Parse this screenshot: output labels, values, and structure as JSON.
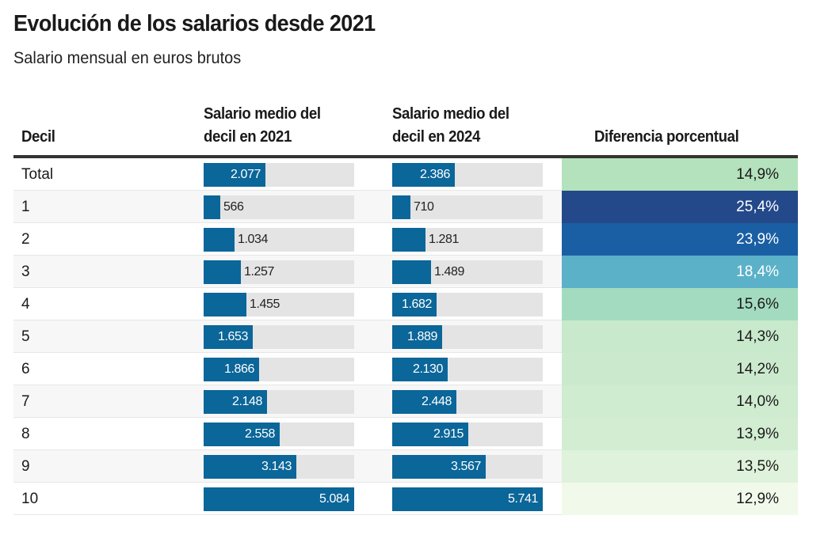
{
  "title": "Evolución de los salarios desde 2021",
  "subtitle": "Salario mensual en euros brutos",
  "headers": {
    "decil": "Decil",
    "y2021": "Salario medio del decil en 2021",
    "y2024": "Salario medio del decil en 2024",
    "diff": "Diferencia porcentual"
  },
  "colors": {
    "bar": "#0b6699",
    "track": "#e4e4e4"
  },
  "rows": [
    {
      "decil": "Total",
      "v2021": 2077,
      "l2021": "2.077",
      "v2024": 2386,
      "l2024": "2.386",
      "diff": "14,9%",
      "diff_value": 14.9,
      "diff_color": "#b4e2bc",
      "diff_text": "#1a1a1a"
    },
    {
      "decil": "1",
      "v2021": 566,
      "l2021": "566",
      "v2024": 710,
      "l2024": "710",
      "diff": "25,4%",
      "diff_value": 25.4,
      "diff_color": "#24498a",
      "diff_text": "#ffffff"
    },
    {
      "decil": "2",
      "v2021": 1034,
      "l2021": "1.034",
      "v2024": 1281,
      "l2024": "1.281",
      "diff": "23,9%",
      "diff_value": 23.9,
      "diff_color": "#1a5fa3",
      "diff_text": "#ffffff"
    },
    {
      "decil": "3",
      "v2021": 1257,
      "l2021": "1.257",
      "v2024": 1489,
      "l2024": "1.489",
      "diff": "18,4%",
      "diff_value": 18.4,
      "diff_color": "#5bb1c8",
      "diff_text": "#ffffff"
    },
    {
      "decil": "4",
      "v2021": 1455,
      "l2021": "1.455",
      "v2024": 1682,
      "l2024": "1.682",
      "diff": "15,6%",
      "diff_value": 15.6,
      "diff_color": "#a3dbc0",
      "diff_text": "#1a1a1a"
    },
    {
      "decil": "5",
      "v2021": 1653,
      "l2021": "1.653",
      "v2024": 1889,
      "l2024": "1.889",
      "diff": "14,3%",
      "diff_value": 14.3,
      "diff_color": "#c8e9cb",
      "diff_text": "#1a1a1a"
    },
    {
      "decil": "6",
      "v2021": 1866,
      "l2021": "1.866",
      "v2024": 2130,
      "l2024": "2.130",
      "diff": "14,2%",
      "diff_value": 14.2,
      "diff_color": "#cbeacd",
      "diff_text": "#1a1a1a"
    },
    {
      "decil": "7",
      "v2021": 2148,
      "l2021": "2.148",
      "v2024": 2448,
      "l2024": "2.448",
      "diff": "14,0%",
      "diff_value": 14.0,
      "diff_color": "#cfebd0",
      "diff_text": "#1a1a1a"
    },
    {
      "decil": "8",
      "v2021": 2558,
      "l2021": "2.558",
      "v2024": 2915,
      "l2024": "2.915",
      "diff": "13,9%",
      "diff_value": 13.9,
      "diff_color": "#d2edd2",
      "diff_text": "#1a1a1a"
    },
    {
      "decil": "9",
      "v2021": 3143,
      "l2021": "3.143",
      "v2024": 3567,
      "l2024": "3.567",
      "diff": "13,5%",
      "diff_value": 13.5,
      "diff_color": "#dff2db",
      "diff_text": "#1a1a1a"
    },
    {
      "decil": "10",
      "v2021": 5084,
      "l2021": "5.084",
      "v2024": 5741,
      "l2024": "5.741",
      "diff": "12,9%",
      "diff_value": 12.9,
      "diff_color": "#f1f9eb",
      "diff_text": "#1a1a1a"
    }
  ],
  "chart_data": {
    "type": "table",
    "title": "Evolución de los salarios desde 2021",
    "subtitle": "Salario mensual en euros brutos",
    "columns": [
      "Decil",
      "Salario medio del decil en 2021",
      "Salario medio del decil en 2024",
      "Diferencia porcentual"
    ],
    "categories": [
      "Total",
      "1",
      "2",
      "3",
      "4",
      "5",
      "6",
      "7",
      "8",
      "9",
      "10"
    ],
    "series": [
      {
        "name": "Salario medio del decil en 2021",
        "values": [
          2077,
          566,
          1034,
          1257,
          1455,
          1653,
          1866,
          2148,
          2558,
          3143,
          5084
        ]
      },
      {
        "name": "Salario medio del decil en 2024",
        "values": [
          2386,
          710,
          1281,
          1489,
          1682,
          1889,
          2130,
          2448,
          2915,
          3567,
          5741
        ]
      },
      {
        "name": "Diferencia porcentual",
        "values": [
          14.9,
          25.4,
          23.9,
          18.4,
          15.6,
          14.3,
          14.2,
          14.0,
          13.9,
          13.5,
          12.9
        ]
      }
    ]
  }
}
